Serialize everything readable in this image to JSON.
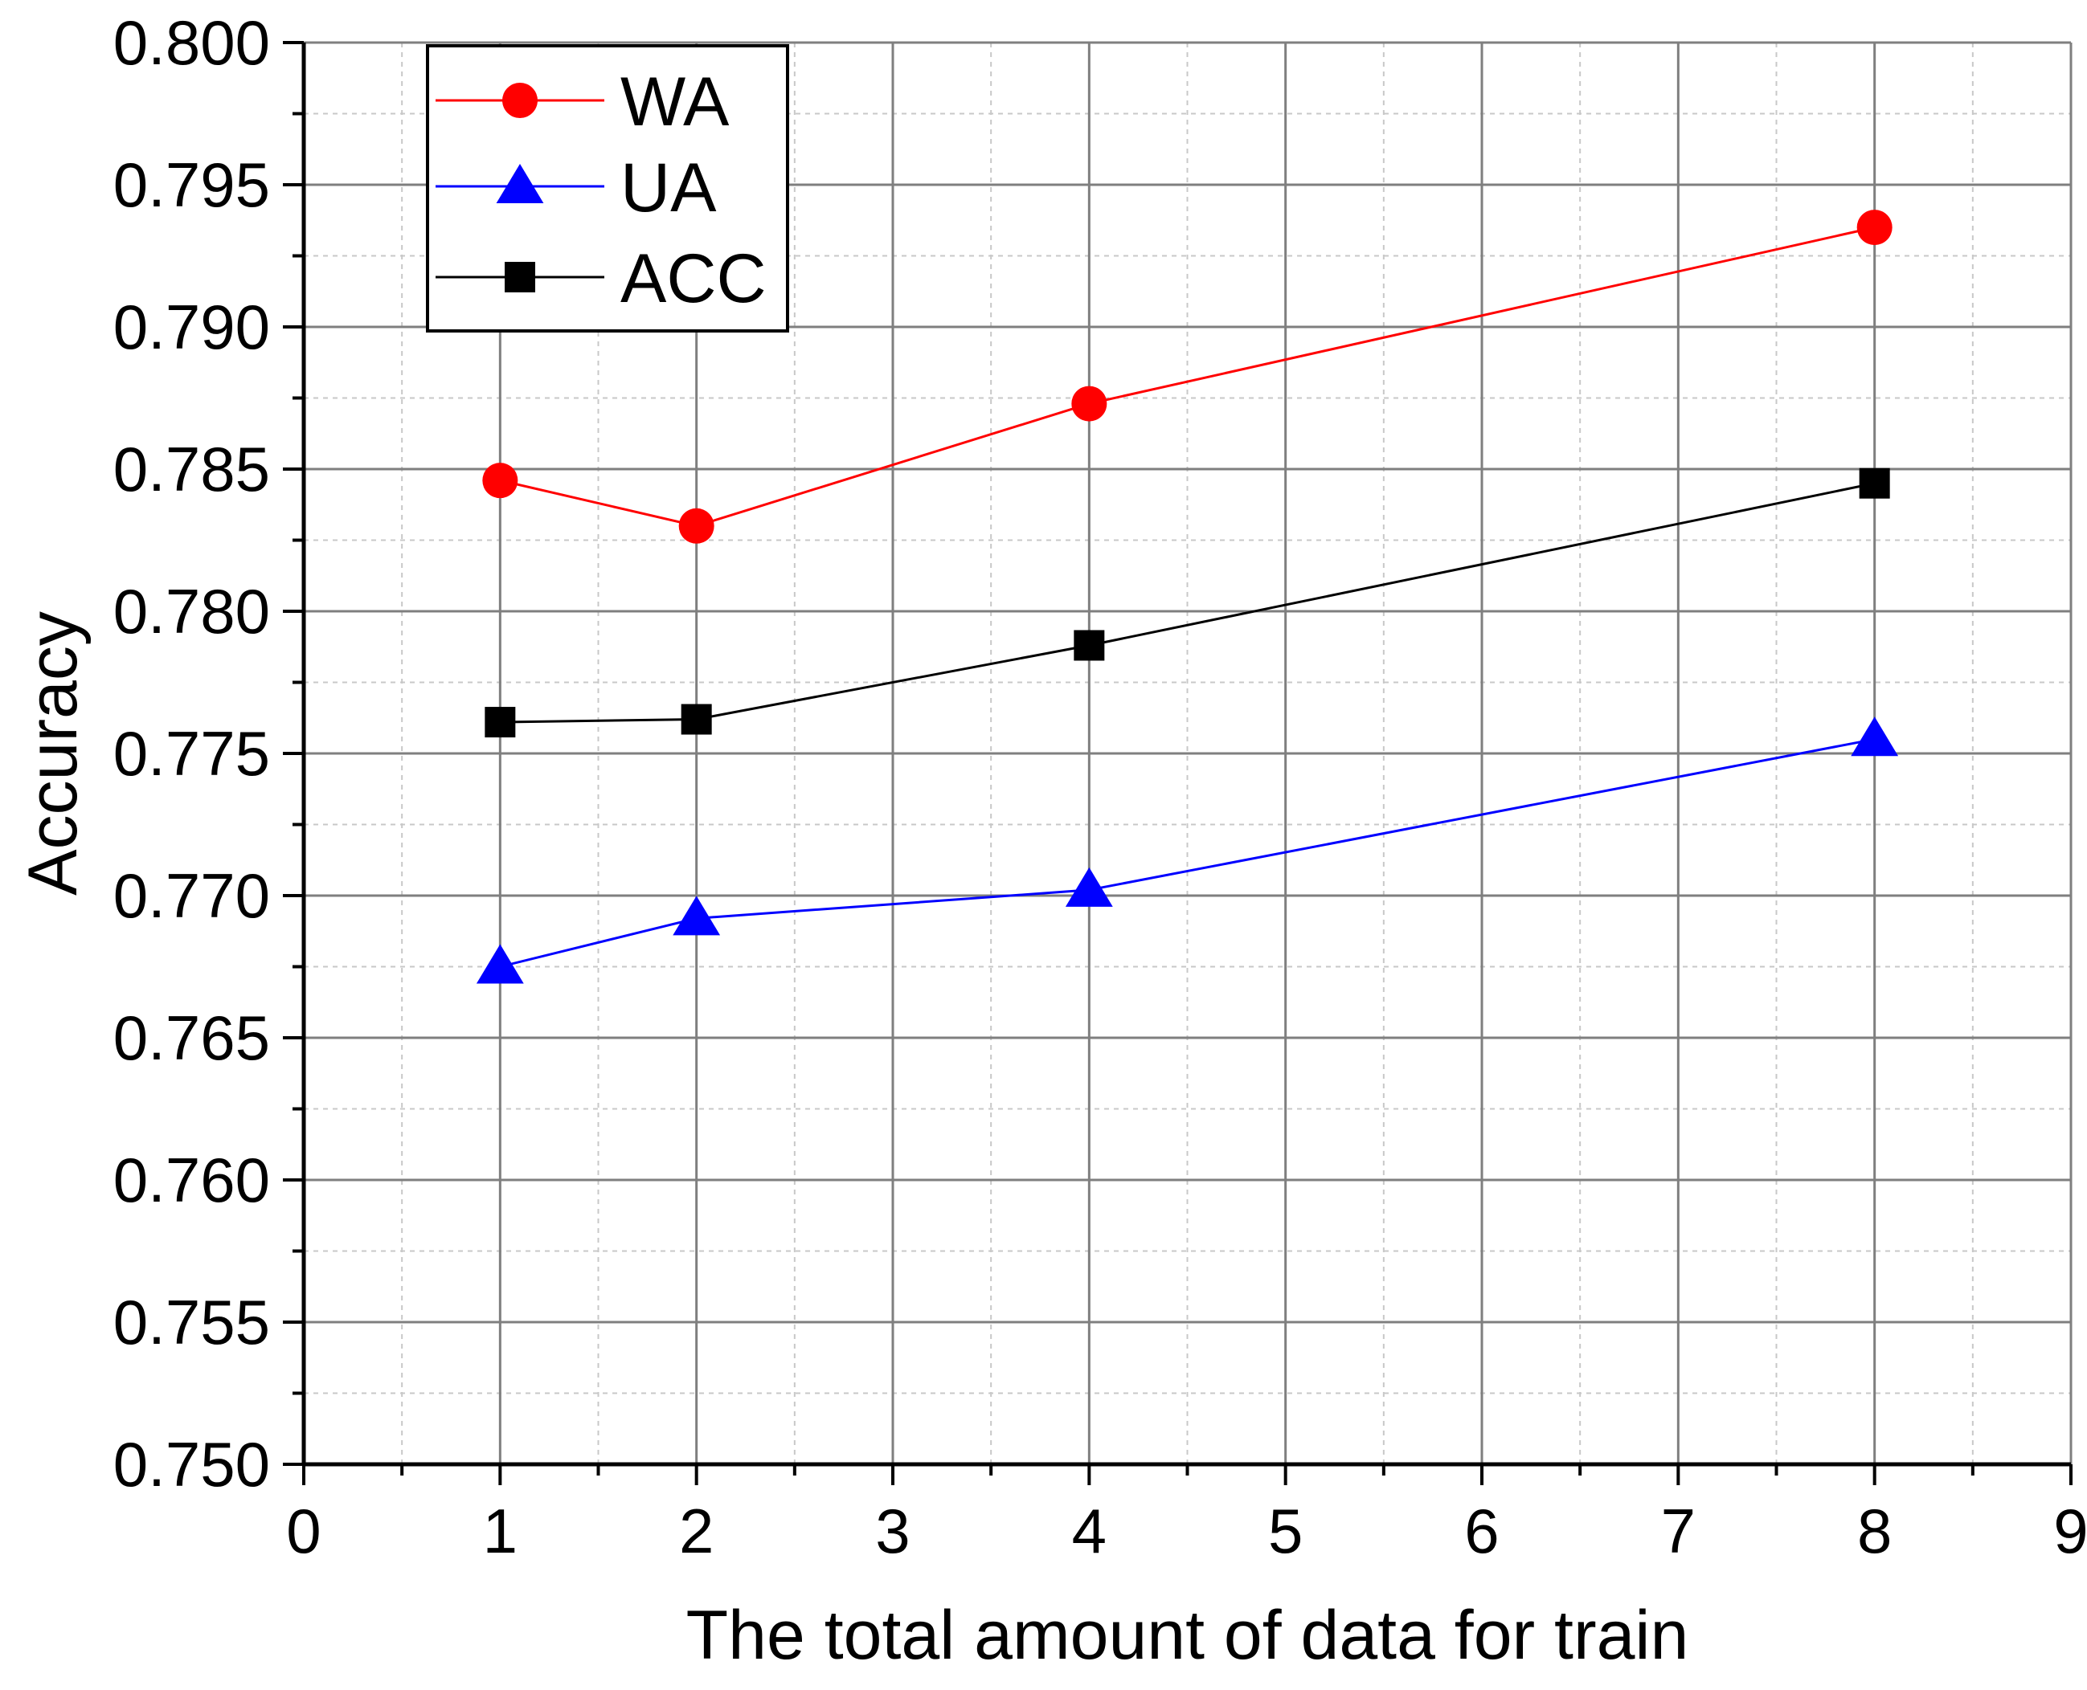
{
  "chart_data": {
    "type": "line",
    "title": "",
    "xlabel": "The total amount of data for train",
    "ylabel": "Accuracy",
    "xlim": [
      0,
      9
    ],
    "ylim": [
      0.75,
      0.8
    ],
    "x_ticks": [
      0,
      1,
      2,
      3,
      4,
      5,
      6,
      7,
      8,
      9
    ],
    "y_ticks": [
      0.75,
      0.755,
      0.76,
      0.765,
      0.77,
      0.775,
      0.78,
      0.785,
      0.79,
      0.795,
      0.8
    ],
    "x_tick_labels": [
      "0",
      "1",
      "2",
      "3",
      "4",
      "5",
      "6",
      "7",
      "8",
      "9"
    ],
    "y_tick_labels": [
      "0.750",
      "0.755",
      "0.760",
      "0.765",
      "0.770",
      "0.775",
      "0.780",
      "0.785",
      "0.790",
      "0.795",
      "0.800"
    ],
    "grid": true,
    "legend_position": "top-left",
    "x": [
      1,
      2,
      4,
      8
    ],
    "series": [
      {
        "name": "WA",
        "values": [
          0.7846,
          0.783,
          0.7873,
          0.7935
        ],
        "color": "#ff0000",
        "marker": "circle"
      },
      {
        "name": "UA",
        "values": [
          0.7675,
          0.7692,
          0.7702,
          0.7755
        ],
        "color": "#0000ff",
        "marker": "triangle"
      },
      {
        "name": "ACC",
        "values": [
          0.7761,
          0.7762,
          0.7788,
          0.7845
        ],
        "color": "#000000",
        "marker": "square"
      }
    ]
  }
}
